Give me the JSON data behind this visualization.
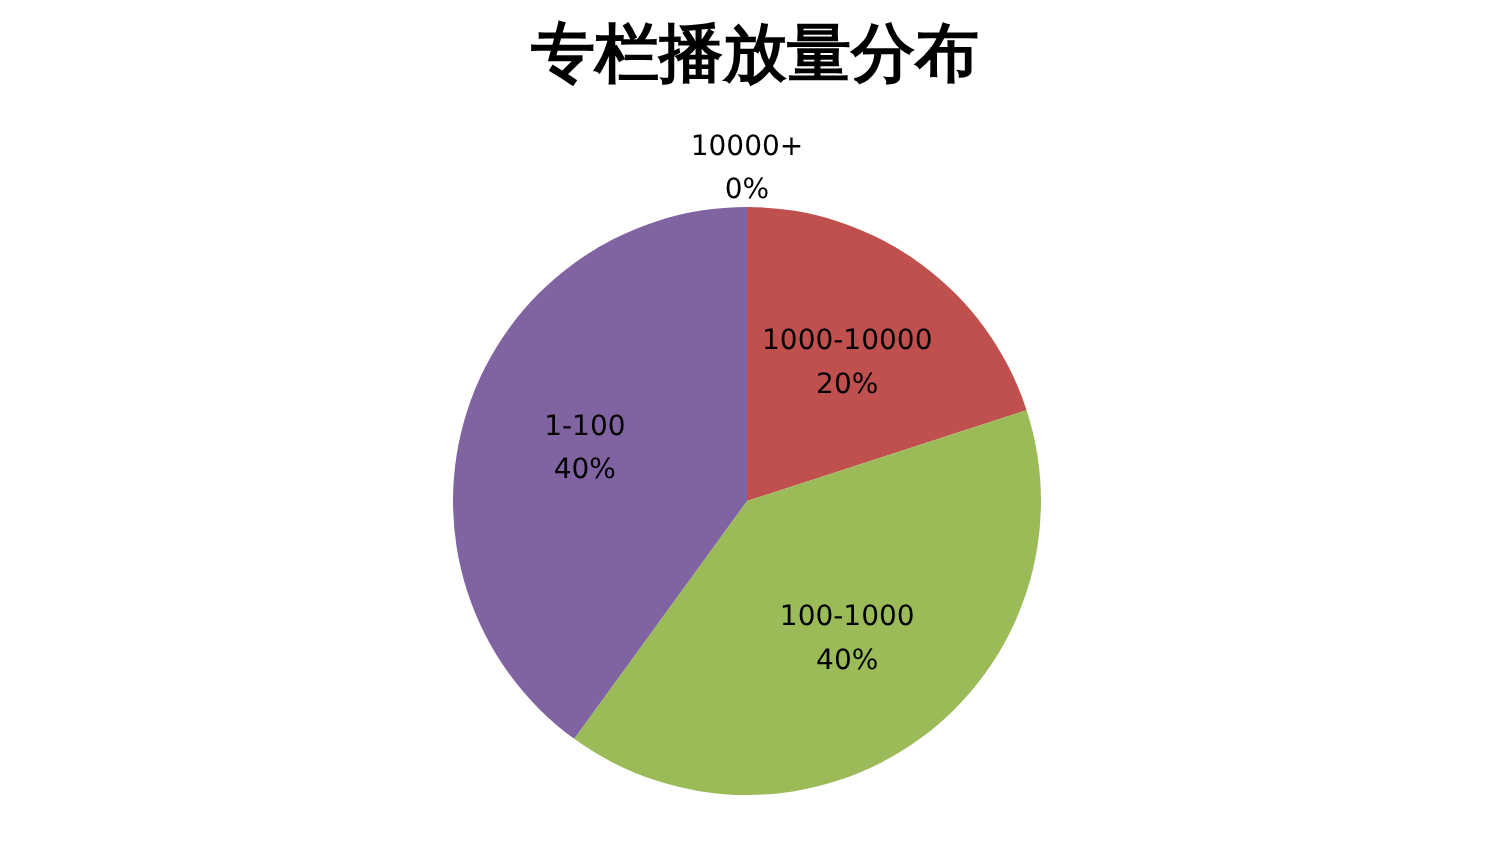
{
  "chart_data": {
    "type": "pie",
    "title": "专栏播放量分布",
    "categories": [
      "10000+",
      "1000-10000",
      "100-1000",
      "1-100"
    ],
    "values": [
      0,
      20,
      40,
      40
    ],
    "colors": [
      "#4f81bd",
      "#c0504d",
      "#9bbb59",
      "#8064a2"
    ],
    "value_labels": [
      "0%",
      "20%",
      "40%",
      "40%"
    ],
    "legend": false
  }
}
